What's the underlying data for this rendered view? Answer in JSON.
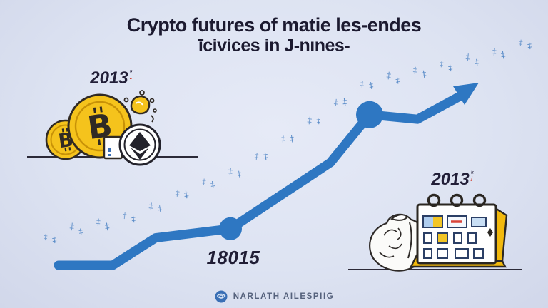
{
  "title": {
    "line1": "Crypto futures of matie les-endes",
    "line2": "īcivices in J-nınes-"
  },
  "left_year": {
    "text": "2013",
    "sup": "⁵",
    "sub_mark": "-"
  },
  "right_year": {
    "text": "2013",
    "sup": "ᵏ",
    "sub_mark": "ʲ"
  },
  "value_label": "18015",
  "footer": {
    "brand": "NARLATH AILESPIIG"
  },
  "colors": {
    "background": "#dde3f2",
    "line_blue": "#2e77c2",
    "tick_blue": "#5d8ec9",
    "gold": "#f5c31c",
    "ink": "#1c1a30",
    "accent_red": "#d9453a",
    "footer_text": "#55617c"
  },
  "icons": {
    "left_illustration": "bitcoin-ethereum-coins",
    "right_illustration": "flip-calendar-with-crumpled-doodle",
    "footer_logo": "globe-scribble-icon"
  },
  "chart_data": {
    "type": "line",
    "title": "Crypto futures of matie les-endes īcivices in J-nınes-",
    "xlabel": "",
    "ylabel": "",
    "axes": "none",
    "grid": false,
    "legend": "none",
    "arrow_end": true,
    "x": [
      0,
      1,
      2,
      3,
      4,
      5,
      6,
      7
    ],
    "series": [
      {
        "name": "main-line",
        "style": "solid-thick",
        "color": "#2e77c2",
        "values": [
          1.0,
          1.0,
          2.2,
          2.6,
          5.5,
          7.6,
          7.4,
          8.4
        ],
        "markers_at": [
          3,
          5
        ]
      },
      {
        "name": "trend-ticks",
        "style": "glyph-dashed",
        "glyph": "‡",
        "color": "#5d8ec9",
        "anchors": [
          [
            63,
            2.0
          ],
          [
            100,
            2.44
          ],
          [
            150,
            2.72
          ],
          [
            205,
            3.22
          ],
          [
            265,
            4.19
          ],
          [
            330,
            4.94
          ],
          [
            395,
            6.28
          ],
          [
            455,
            7.56
          ],
          [
            515,
            8.88
          ],
          [
            575,
            9.25
          ],
          [
            635,
            9.72
          ],
          [
            695,
            10.13
          ],
          [
            745,
            10.69
          ]
        ]
      }
    ],
    "annotations": [
      {
        "text": "2013",
        "position": "above-left-illustration"
      },
      {
        "text": "18015",
        "position": "below-first-marker"
      },
      {
        "text": "2013",
        "position": "above-right-illustration"
      }
    ]
  }
}
